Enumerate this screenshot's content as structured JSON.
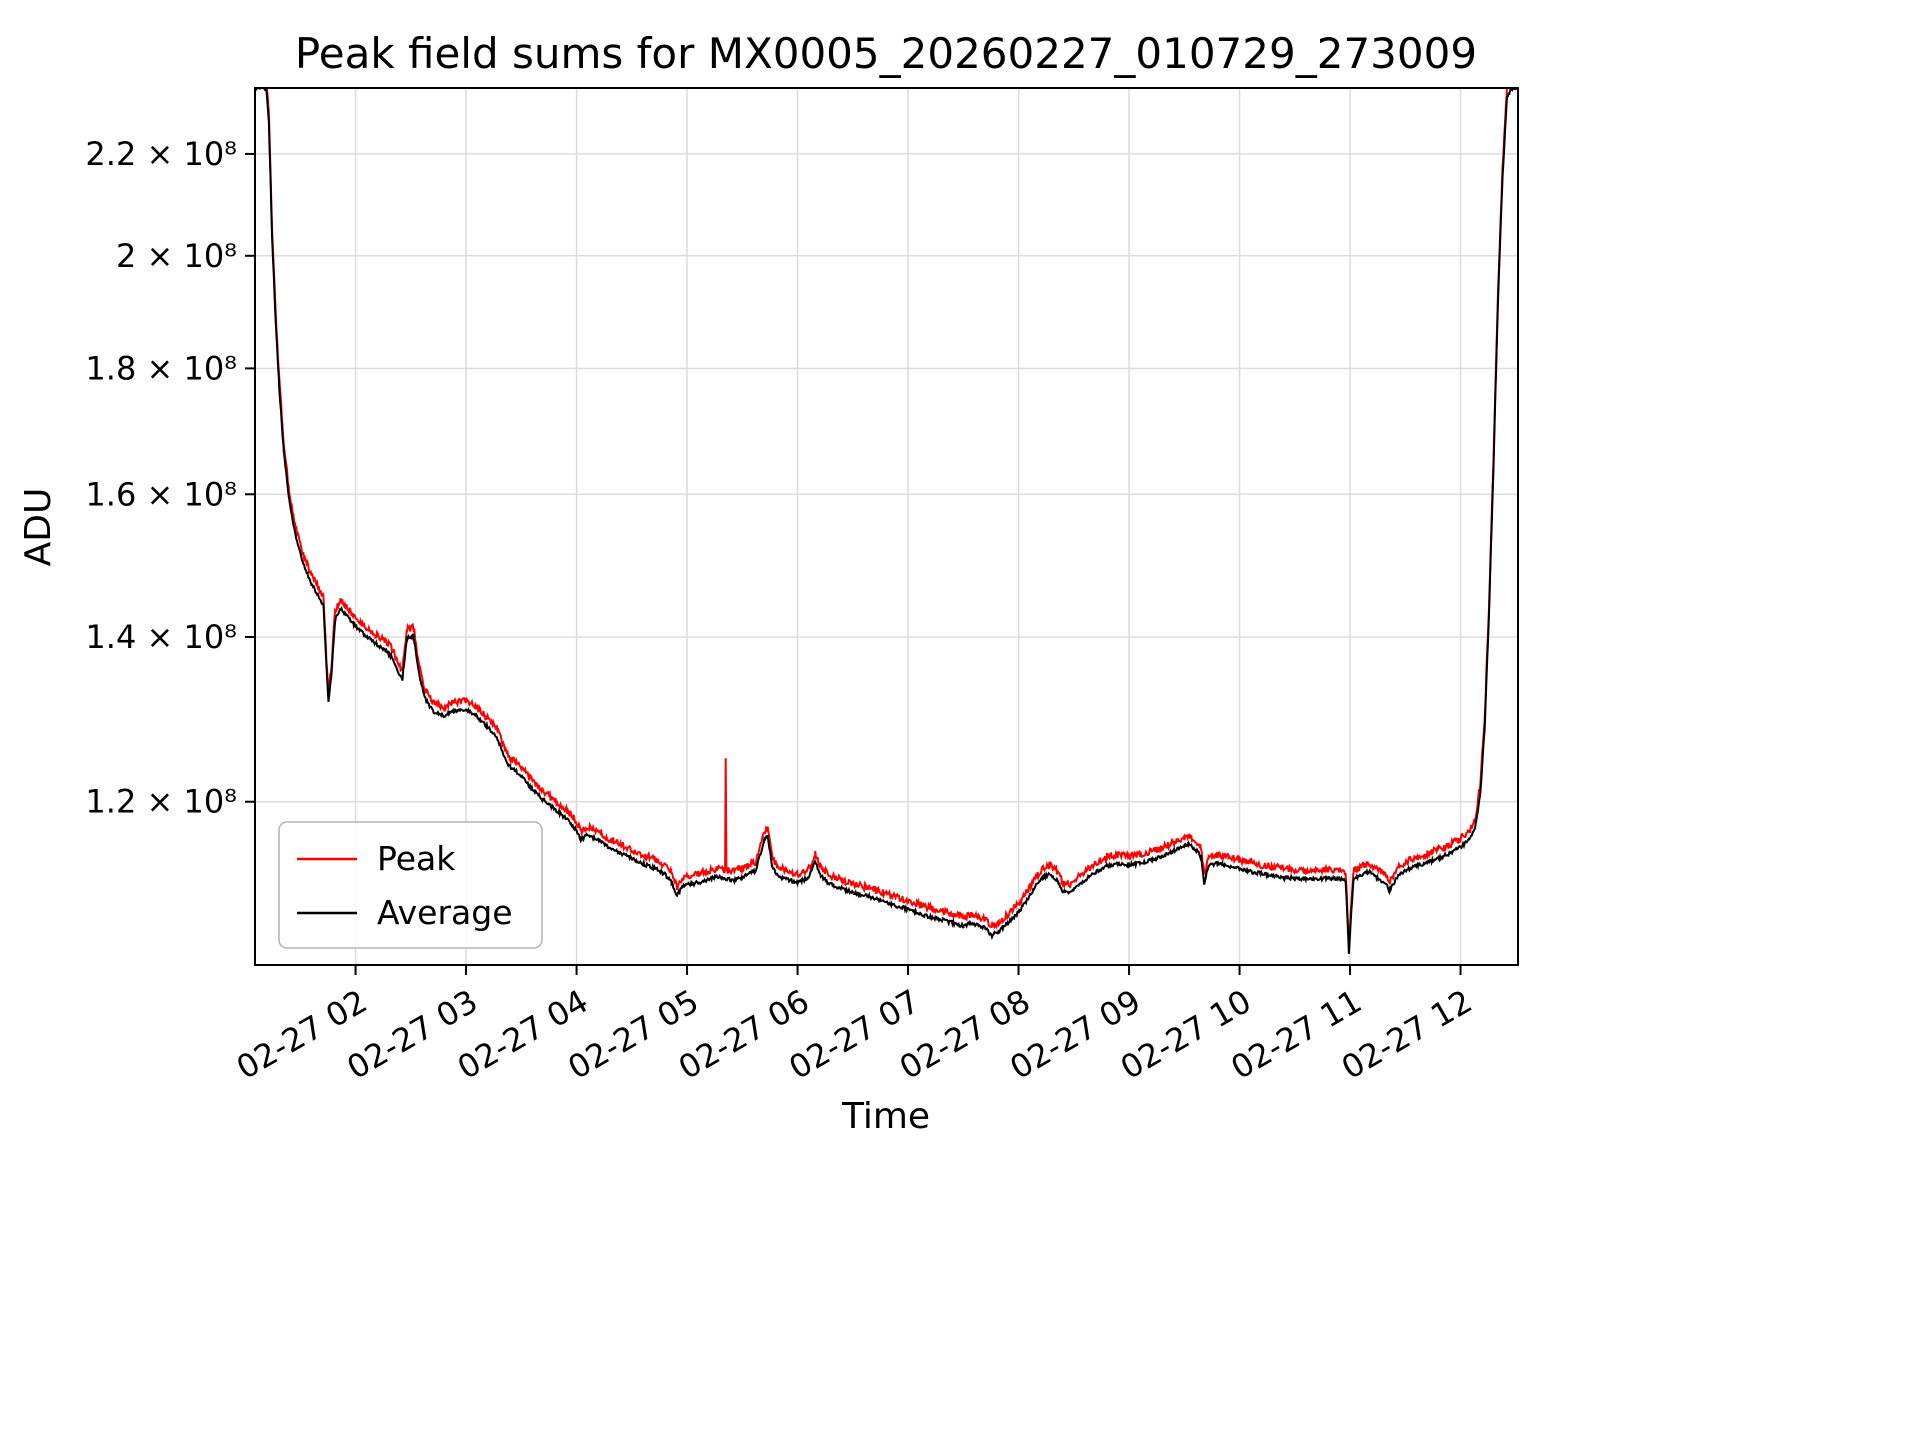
{
  "canvas": {
    "background": "#ffffff"
  },
  "chart_data": {
    "type": "line",
    "title": "Peak field sums for MX0005_20260227_010729_273009",
    "xlabel": "Time",
    "ylabel": "ADU",
    "y_scale": "log",
    "y_value_scale": 100000000,
    "ylim": [
      1.03,
      2.34
    ],
    "xlim": [
      1.09,
      12.52
    ],
    "x_unit": "hours on 02-27",
    "grid": true,
    "legend_position": "lower left",
    "x_ticks": [
      {
        "x": 2,
        "label": "02-27 02"
      },
      {
        "x": 3,
        "label": "02-27 03"
      },
      {
        "x": 4,
        "label": "02-27 04"
      },
      {
        "x": 5,
        "label": "02-27 05"
      },
      {
        "x": 6,
        "label": "02-27 06"
      },
      {
        "x": 7,
        "label": "02-27 07"
      },
      {
        "x": 8,
        "label": "02-27 08"
      },
      {
        "x": 9,
        "label": "02-27 09"
      },
      {
        "x": 10,
        "label": "02-27 10"
      },
      {
        "x": 11,
        "label": "02-27 11"
      },
      {
        "x": 12,
        "label": "02-27 12"
      }
    ],
    "y_ticks": [
      {
        "y": 1.2,
        "label": "1.2 × 10⁸"
      },
      {
        "y": 1.4,
        "label": "1.4 × 10⁸"
      },
      {
        "y": 1.6,
        "label": "1.6 × 10⁸"
      },
      {
        "y": 1.8,
        "label": "1.8 × 10⁸"
      },
      {
        "y": 2.0,
        "label": "2 × 10⁸"
      },
      {
        "y": 2.2,
        "label": "2.2 × 10⁸"
      }
    ],
    "series": [
      {
        "name": "Peak",
        "color": "#ff0000",
        "line_width": 2,
        "offset_ratio": 1.005,
        "noise": 0.0032,
        "noise_mode": "up",
        "spikes": [
          [
            5.35,
            1.25
          ]
        ]
      },
      {
        "name": "Average",
        "color": "#000000",
        "line_width": 2,
        "offset_ratio": 1.0,
        "noise": 0.0017,
        "noise_mode": "sym",
        "spikes": []
      }
    ],
    "base_points": [
      [
        1.09,
        2.34
      ],
      [
        1.19,
        2.34
      ],
      [
        1.215,
        2.27
      ],
      [
        1.245,
        2.03
      ],
      [
        1.275,
        1.89
      ],
      [
        1.31,
        1.765
      ],
      [
        1.35,
        1.665
      ],
      [
        1.4,
        1.59
      ],
      [
        1.455,
        1.54
      ],
      [
        1.52,
        1.502
      ],
      [
        1.6,
        1.472
      ],
      [
        1.67,
        1.452
      ],
      [
        1.71,
        1.442
      ],
      [
        1.735,
        1.365
      ],
      [
        1.755,
        1.318
      ],
      [
        1.78,
        1.348
      ],
      [
        1.815,
        1.422
      ],
      [
        1.865,
        1.437
      ],
      [
        1.925,
        1.428
      ],
      [
        2.0,
        1.414
      ],
      [
        2.09,
        1.401
      ],
      [
        2.18,
        1.392
      ],
      [
        2.27,
        1.383
      ],
      [
        2.34,
        1.372
      ],
      [
        2.385,
        1.353
      ],
      [
        2.425,
        1.346
      ],
      [
        2.465,
        1.399
      ],
      [
        2.525,
        1.401
      ],
      [
        2.575,
        1.352
      ],
      [
        2.625,
        1.323
      ],
      [
        2.7,
        1.306
      ],
      [
        2.8,
        1.301
      ],
      [
        2.9,
        1.307
      ],
      [
        3.0,
        1.308
      ],
      [
        3.09,
        1.301
      ],
      [
        3.18,
        1.289
      ],
      [
        3.27,
        1.277
      ],
      [
        3.345,
        1.253
      ],
      [
        3.39,
        1.241
      ],
      [
        3.44,
        1.236
      ],
      [
        3.52,
        1.226
      ],
      [
        3.6,
        1.214
      ],
      [
        3.69,
        1.203
      ],
      [
        3.78,
        1.194
      ],
      [
        3.87,
        1.185
      ],
      [
        3.95,
        1.176
      ],
      [
        4.0,
        1.168
      ],
      [
        4.04,
        1.158
      ],
      [
        4.09,
        1.163
      ],
      [
        4.18,
        1.159
      ],
      [
        4.27,
        1.151
      ],
      [
        4.36,
        1.146
      ],
      [
        4.45,
        1.141
      ],
      [
        4.54,
        1.136
      ],
      [
        4.63,
        1.131
      ],
      [
        4.72,
        1.127
      ],
      [
        4.8,
        1.121
      ],
      [
        4.86,
        1.113
      ],
      [
        4.91,
        1.099
      ],
      [
        4.96,
        1.109
      ],
      [
        5.04,
        1.111
      ],
      [
        5.12,
        1.113
      ],
      [
        5.2,
        1.116
      ],
      [
        5.28,
        1.119
      ],
      [
        5.33,
        1.117
      ],
      [
        5.42,
        1.115
      ],
      [
        5.5,
        1.118
      ],
      [
        5.62,
        1.125
      ],
      [
        5.7,
        1.158
      ],
      [
        5.73,
        1.162
      ],
      [
        5.77,
        1.13
      ],
      [
        5.82,
        1.12
      ],
      [
        5.9,
        1.116
      ],
      [
        6.0,
        1.112
      ],
      [
        6.1,
        1.118
      ],
      [
        6.16,
        1.134
      ],
      [
        6.21,
        1.12
      ],
      [
        6.28,
        1.112
      ],
      [
        6.36,
        1.108
      ],
      [
        6.45,
        1.104
      ],
      [
        6.55,
        1.101
      ],
      [
        6.65,
        1.098
      ],
      [
        6.75,
        1.094
      ],
      [
        6.85,
        1.09
      ],
      [
        6.95,
        1.087
      ],
      [
        7.0,
        1.085
      ],
      [
        7.08,
        1.082
      ],
      [
        7.15,
        1.079
      ],
      [
        7.22,
        1.077
      ],
      [
        7.3,
        1.075
      ],
      [
        7.38,
        1.072
      ],
      [
        7.45,
        1.07
      ],
      [
        7.5,
        1.068
      ],
      [
        7.57,
        1.071
      ],
      [
        7.63,
        1.069
      ],
      [
        7.7,
        1.066
      ],
      [
        7.76,
        1.059
      ],
      [
        7.82,
        1.063
      ],
      [
        7.9,
        1.071
      ],
      [
        8.0,
        1.082
      ],
      [
        8.08,
        1.095
      ],
      [
        8.15,
        1.108
      ],
      [
        8.22,
        1.118
      ],
      [
        8.28,
        1.122
      ],
      [
        8.34,
        1.116
      ],
      [
        8.4,
        1.104
      ],
      [
        8.46,
        1.101
      ],
      [
        8.52,
        1.108
      ],
      [
        8.6,
        1.115
      ],
      [
        8.7,
        1.124
      ],
      [
        8.8,
        1.13
      ],
      [
        8.9,
        1.132
      ],
      [
        9.0,
        1.131
      ],
      [
        9.1,
        1.133
      ],
      [
        9.2,
        1.136
      ],
      [
        9.3,
        1.14
      ],
      [
        9.4,
        1.146
      ],
      [
        9.5,
        1.151
      ],
      [
        9.54,
        1.153
      ],
      [
        9.6,
        1.148
      ],
      [
        9.65,
        1.14
      ],
      [
        9.68,
        1.112
      ],
      [
        9.72,
        1.13
      ],
      [
        9.8,
        1.133
      ],
      [
        9.9,
        1.13
      ],
      [
        10.0,
        1.127
      ],
      [
        10.1,
        1.124
      ],
      [
        10.2,
        1.122
      ],
      [
        10.3,
        1.12
      ],
      [
        10.4,
        1.118
      ],
      [
        10.5,
        1.117
      ],
      [
        10.6,
        1.116
      ],
      [
        10.7,
        1.116
      ],
      [
        10.8,
        1.117
      ],
      [
        10.9,
        1.117
      ],
      [
        10.96,
        1.115
      ],
      [
        10.99,
        1.042
      ],
      [
        11.03,
        1.116
      ],
      [
        11.1,
        1.12
      ],
      [
        11.17,
        1.124
      ],
      [
        11.24,
        1.118
      ],
      [
        11.32,
        1.112
      ],
      [
        11.36,
        1.104
      ],
      [
        11.42,
        1.118
      ],
      [
        11.5,
        1.125
      ],
      [
        11.6,
        1.13
      ],
      [
        11.7,
        1.134
      ],
      [
        11.8,
        1.138
      ],
      [
        11.9,
        1.143
      ],
      [
        12.0,
        1.15
      ],
      [
        12.08,
        1.158
      ],
      [
        12.13,
        1.17
      ],
      [
        12.18,
        1.21
      ],
      [
        12.22,
        1.29
      ],
      [
        12.26,
        1.44
      ],
      [
        12.3,
        1.65
      ],
      [
        12.34,
        1.92
      ],
      [
        12.38,
        2.15
      ],
      [
        12.42,
        2.32
      ],
      [
        12.46,
        2.34
      ],
      [
        12.52,
        2.34
      ]
    ]
  }
}
